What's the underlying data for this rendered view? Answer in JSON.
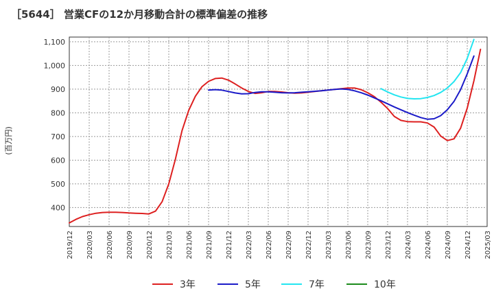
{
  "chart_data": {
    "type": "line",
    "title": "［5644］ 営業CFの12か月移動合計の標準偏差の推移",
    "ylabel": "(百万円)",
    "xlabel": "",
    "ylim": [
      320,
      1120
    ],
    "yticks": [
      400,
      500,
      600,
      700,
      800,
      900,
      1000,
      1100
    ],
    "ytick_labels": [
      "400",
      "500",
      "600",
      "700",
      "800",
      "900",
      "1,000",
      "1,100"
    ],
    "xticks": [
      "2019/12",
      "2020/03",
      "2020/06",
      "2020/09",
      "2020/12",
      "2021/03",
      "2021/06",
      "2021/09",
      "2021/12",
      "2022/03",
      "2022/06",
      "2022/09",
      "2022/12",
      "2023/03",
      "2023/06",
      "2023/09",
      "2023/12",
      "2024/03",
      "2024/06",
      "2024/09",
      "2024/12",
      "2025/03"
    ],
    "grid": true,
    "legend_position": "bottom",
    "series": [
      {
        "name": "3年",
        "color": "#dd1f1f",
        "start_index": 0,
        "values": [
          335,
          350,
          362,
          370,
          376,
          379,
          380,
          380,
          379,
          377,
          376,
          375,
          373,
          385,
          425,
          500,
          605,
          725,
          810,
          870,
          910,
          933,
          945,
          947,
          938,
          922,
          905,
          890,
          882,
          885,
          890,
          890,
          888,
          885,
          883,
          884,
          887,
          890,
          893,
          896,
          899,
          902,
          905,
          905,
          898,
          885,
          868,
          845,
          818,
          785,
          768,
          763,
          762,
          762,
          757,
          740,
          702,
          683,
          690,
          735,
          820,
          935,
          1068
        ]
      },
      {
        "name": "5年",
        "color": "#1a1ac8",
        "start_index": 21,
        "values": [
          896,
          898,
          896,
          890,
          884,
          880,
          881,
          886,
          889,
          889,
          887,
          885,
          884,
          885,
          887,
          889,
          891,
          893,
          896,
          899,
          901,
          899,
          893,
          885,
          875,
          863,
          851,
          838,
          825,
          813,
          801,
          790,
          780,
          773,
          775,
          788,
          813,
          848,
          898,
          965,
          1040
        ]
      },
      {
        "name": "7年",
        "color": "#22e5f0",
        "start_index": 47,
        "values": [
          902,
          888,
          876,
          867,
          861,
          859,
          860,
          865,
          873,
          886,
          905,
          932,
          970,
          1030,
          1110
        ]
      },
      {
        "name": "10年",
        "color": "#1a8a1a",
        "start_index": 0,
        "values": []
      }
    ]
  }
}
